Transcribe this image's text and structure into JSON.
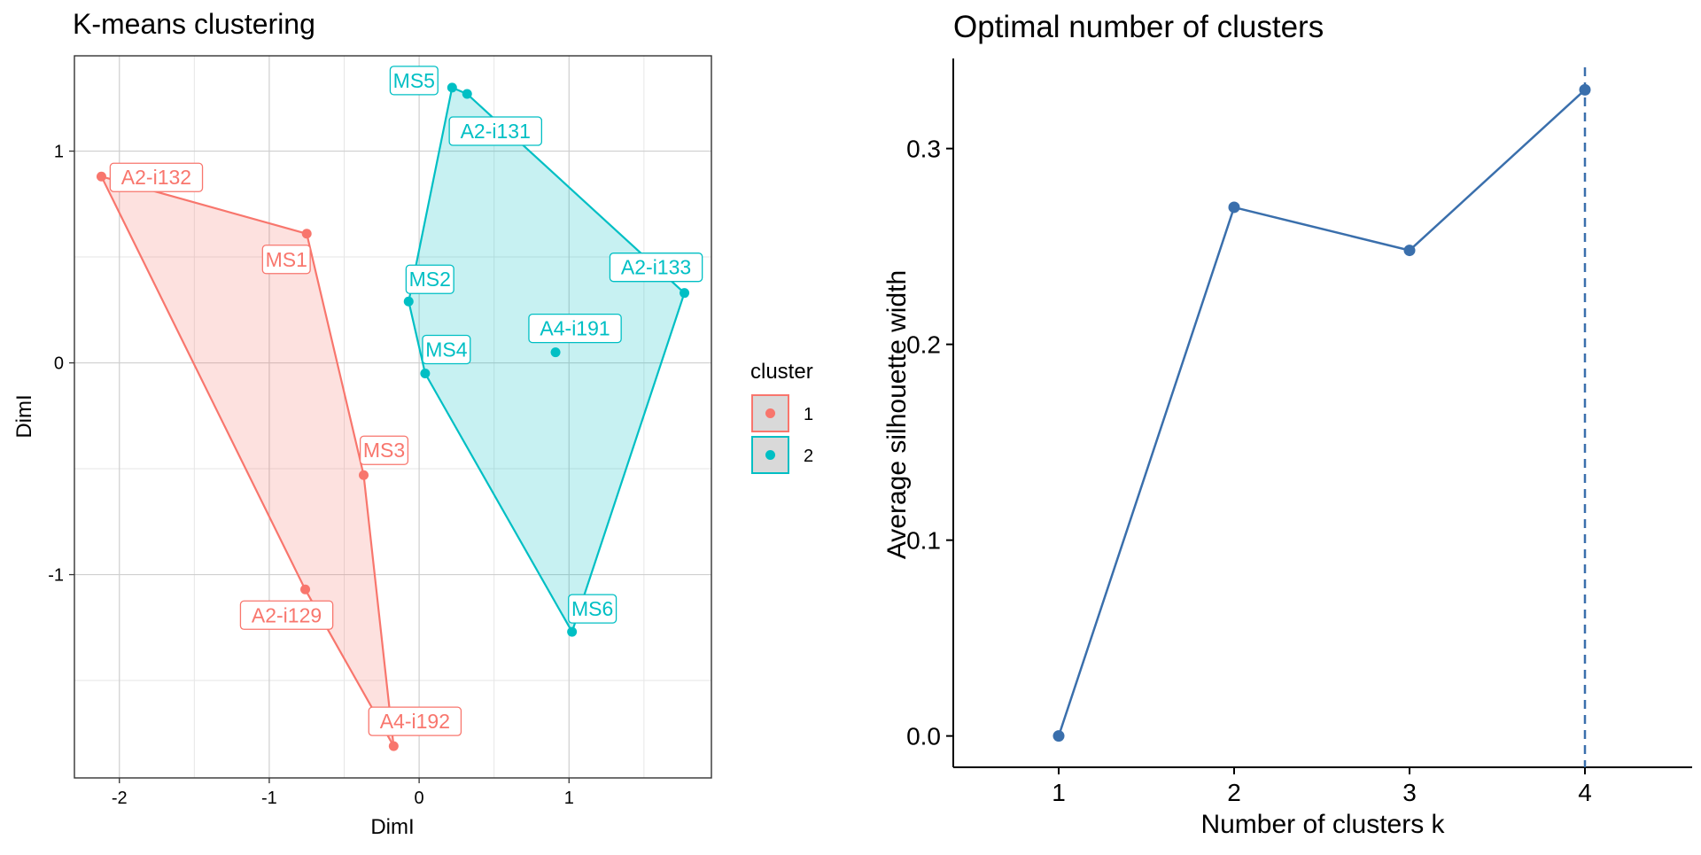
{
  "chart_data": [
    {
      "type": "scatter",
      "title": "K-means clustering",
      "xlabel": "DimI",
      "ylabel": "DimI",
      "xlim": [
        -2.3,
        1.95
      ],
      "ylim": [
        -1.96,
        1.45
      ],
      "x_ticks": [
        -2,
        -1,
        0,
        1
      ],
      "x_tick_labels": [
        "-2",
        "-1",
        "0",
        "1"
      ],
      "y_ticks": [
        -1,
        0,
        1
      ],
      "y_tick_labels": [
        "-1",
        "0",
        "1"
      ],
      "grid": true,
      "legend": {
        "title": "cluster",
        "position": "right",
        "entries": [
          {
            "label": "1",
            "color": "#F8766D"
          },
          {
            "label": "2",
            "color": "#00BFC4"
          }
        ]
      },
      "series": [
        {
          "name": "1",
          "color": "#F8766D",
          "hull": [
            "A2-i132",
            "MS1",
            "MS3",
            "A4-i192",
            "A2-i129"
          ],
          "points": [
            {
              "label": "A2-i132",
              "x": -2.12,
              "y": 0.88
            },
            {
              "label": "MS1",
              "x": -0.75,
              "y": 0.61
            },
            {
              "label": "MS3",
              "x": -0.37,
              "y": -0.53
            },
            {
              "label": "A2-i129",
              "x": -0.76,
              "y": -1.07
            },
            {
              "label": "A4-i192",
              "x": -0.17,
              "y": -1.81
            }
          ]
        },
        {
          "name": "2",
          "color": "#00BFC4",
          "hull": [
            "MS5",
            "A2-i131",
            "A2-i133",
            "MS6",
            "MS4",
            "MS2"
          ],
          "points": [
            {
              "label": "MS5",
              "x": 0.22,
              "y": 1.3
            },
            {
              "label": "A2-i131",
              "x": 0.32,
              "y": 1.27
            },
            {
              "label": "A2-i133",
              "x": 1.77,
              "y": 0.33
            },
            {
              "label": "MS2",
              "x": -0.07,
              "y": 0.29
            },
            {
              "label": "A4-i191",
              "x": 0.91,
              "y": 0.05
            },
            {
              "label": "MS4",
              "x": 0.04,
              "y": -0.05
            },
            {
              "label": "MS6",
              "x": 1.02,
              "y": -1.27
            }
          ]
        }
      ]
    },
    {
      "type": "line",
      "title": "Optimal number of clusters",
      "xlabel": "Number of clusters k",
      "ylabel": "Average silhouette width",
      "categories": [
        "1",
        "2",
        "3",
        "4"
      ],
      "values": [
        0.0,
        0.27,
        0.248,
        0.33
      ],
      "ylim": [
        -0.016,
        0.346
      ],
      "y_ticks": [
        0.0,
        0.1,
        0.2,
        0.3
      ],
      "y_tick_labels": [
        "0.0",
        "0.1",
        "0.2",
        "0.3"
      ],
      "optimal_k": 4,
      "color": "#3A6FAC",
      "grid": false
    }
  ]
}
